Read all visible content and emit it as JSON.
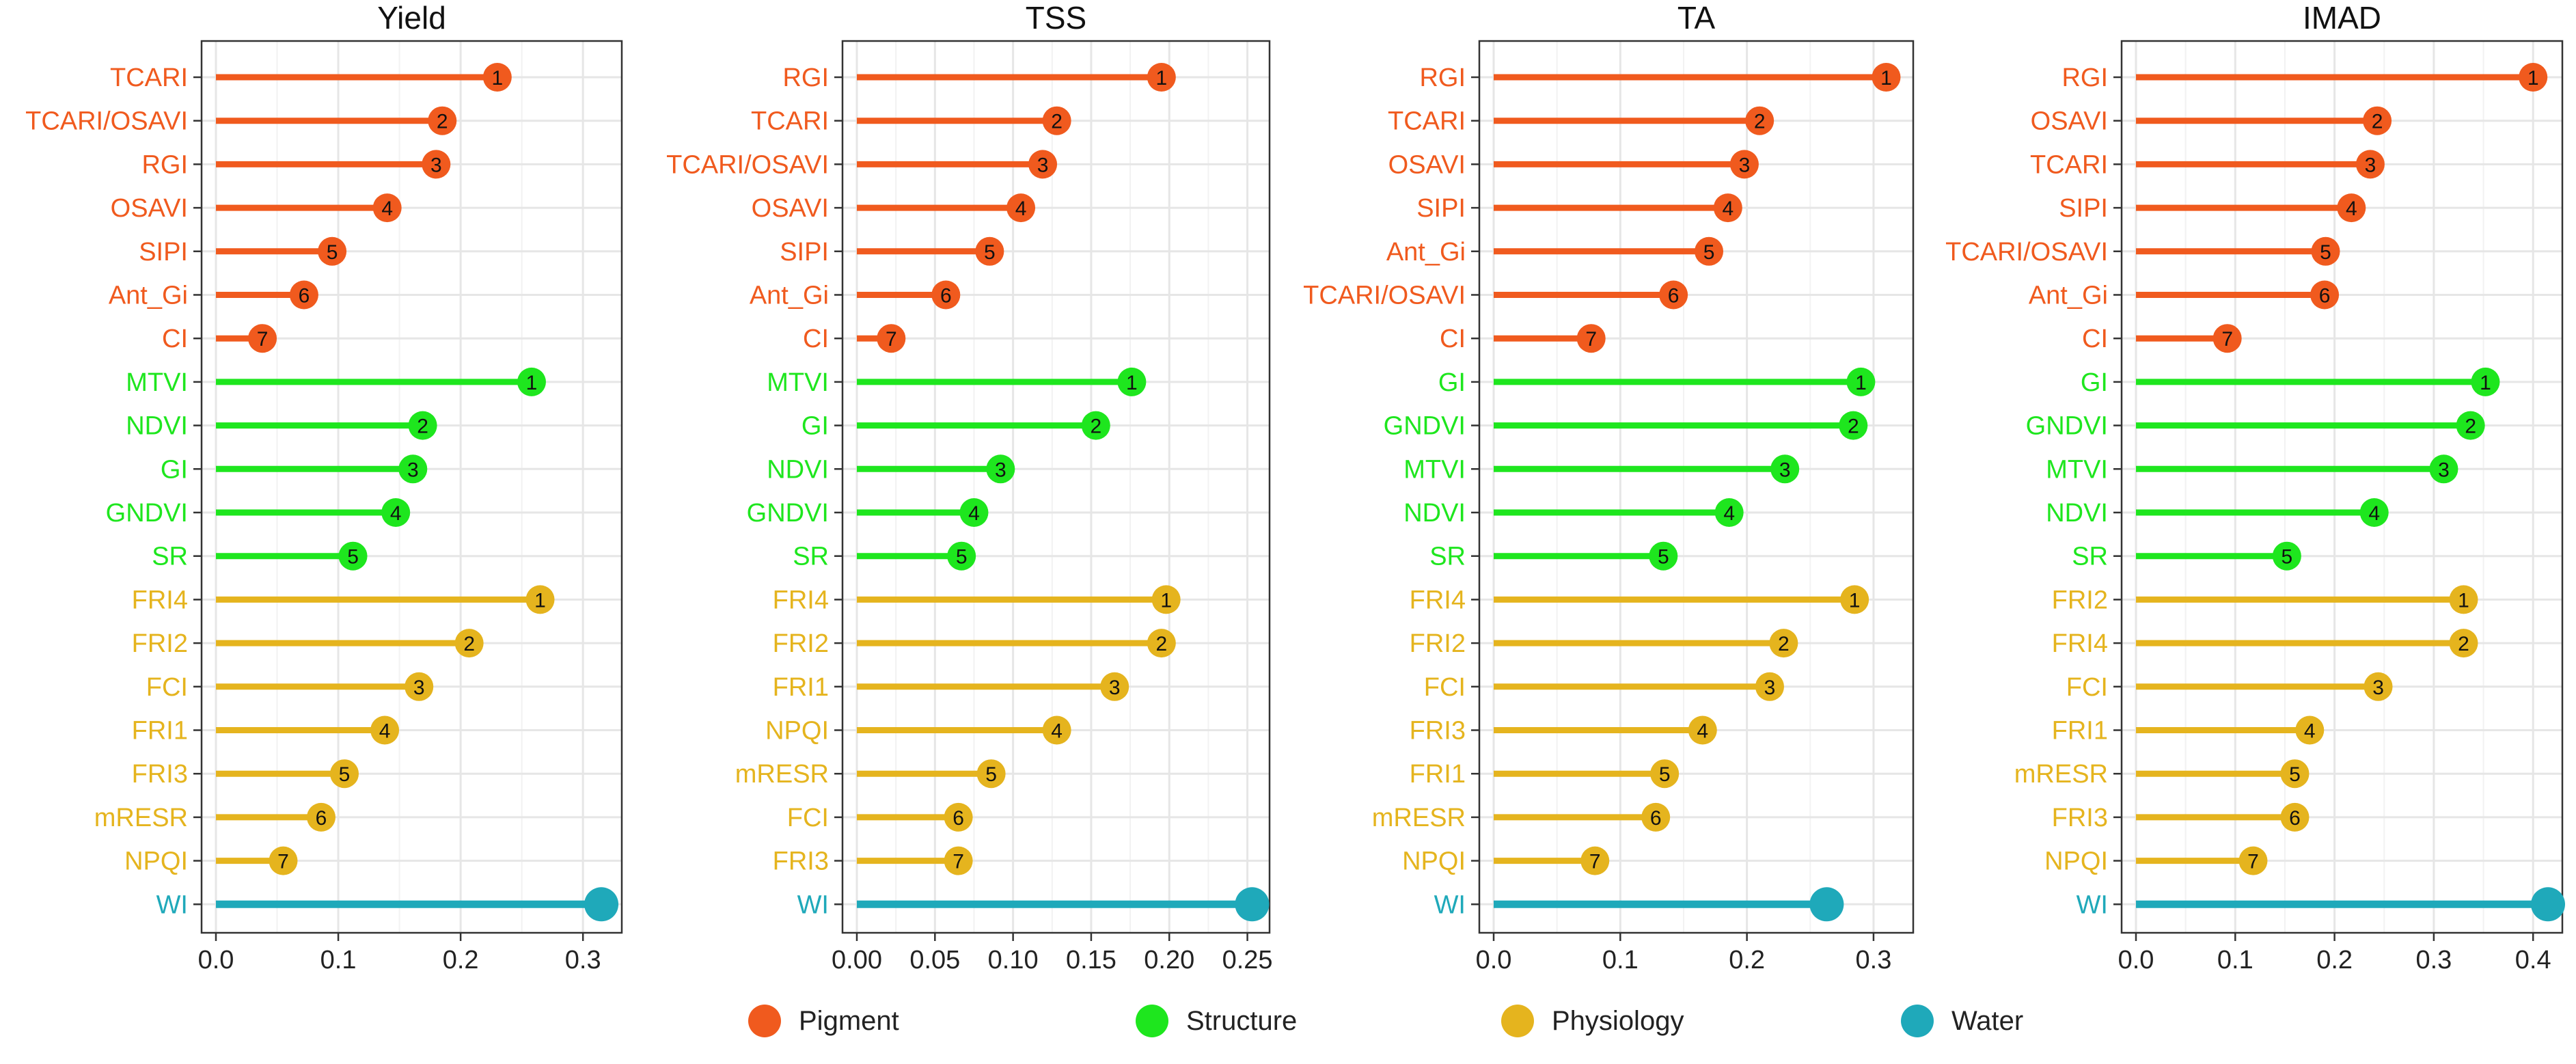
{
  "chart_data": [
    {
      "type": "lollipop",
      "title": "Yield",
      "xlim": [
        0,
        0.32
      ],
      "xticks": [
        0.0,
        0.1,
        0.2,
        0.3
      ],
      "xtick_labels": [
        "0.0",
        "0.1",
        "0.2",
        "0.3"
      ],
      "xlabel": "",
      "ylabel": "",
      "grid": true,
      "rows": [
        {
          "label": "TCARI",
          "group": "Pigment",
          "rank": "1",
          "value": 0.23
        },
        {
          "label": "TCARI/OSAVI",
          "group": "Pigment",
          "rank": "2",
          "value": 0.185
        },
        {
          "label": "RGI",
          "group": "Pigment",
          "rank": "3",
          "value": 0.18
        },
        {
          "label": "OSAVI",
          "group": "Pigment",
          "rank": "4",
          "value": 0.14
        },
        {
          "label": "SIPI",
          "group": "Pigment",
          "rank": "5",
          "value": 0.095
        },
        {
          "label": "Ant_Gi",
          "group": "Pigment",
          "rank": "6",
          "value": 0.072
        },
        {
          "label": "CI",
          "group": "Pigment",
          "rank": "7",
          "value": 0.038
        },
        {
          "label": "MTVI",
          "group": "Structure",
          "rank": "1",
          "value": 0.258
        },
        {
          "label": "NDVI",
          "group": "Structure",
          "rank": "2",
          "value": 0.169
        },
        {
          "label": "GI",
          "group": "Structure",
          "rank": "3",
          "value": 0.161
        },
        {
          "label": "GNDVI",
          "group": "Structure",
          "rank": "4",
          "value": 0.147
        },
        {
          "label": "SR",
          "group": "Structure",
          "rank": "5",
          "value": 0.112
        },
        {
          "label": "FRI4",
          "group": "Physiology",
          "rank": "1",
          "value": 0.265
        },
        {
          "label": "FRI2",
          "group": "Physiology",
          "rank": "2",
          "value": 0.207
        },
        {
          "label": "FCI",
          "group": "Physiology",
          "rank": "3",
          "value": 0.166
        },
        {
          "label": "FRI1",
          "group": "Physiology",
          "rank": "4",
          "value": 0.138
        },
        {
          "label": "FRI3",
          "group": "Physiology",
          "rank": "5",
          "value": 0.105
        },
        {
          "label": "mRESR",
          "group": "Physiology",
          "rank": "6",
          "value": 0.086
        },
        {
          "label": "NPQI",
          "group": "Physiology",
          "rank": "7",
          "value": 0.055
        },
        {
          "label": "WI",
          "group": "Water",
          "rank": "",
          "value": 0.315
        }
      ]
    },
    {
      "type": "lollipop",
      "title": "TSS",
      "xlim": [
        0,
        0.255
      ],
      "xticks": [
        0.0,
        0.05,
        0.1,
        0.15,
        0.2,
        0.25
      ],
      "xtick_labels": [
        "0.00",
        "0.05",
        "0.10",
        "0.15",
        "0.20",
        "0.25"
      ],
      "xlabel": "",
      "ylabel": "",
      "grid": true,
      "rows": [
        {
          "label": "RGI",
          "group": "Pigment",
          "rank": "1",
          "value": 0.195
        },
        {
          "label": "TCARI",
          "group": "Pigment",
          "rank": "2",
          "value": 0.128
        },
        {
          "label": "TCARI/OSAVI",
          "group": "Pigment",
          "rank": "3",
          "value": 0.119
        },
        {
          "label": "OSAVI",
          "group": "Pigment",
          "rank": "4",
          "value": 0.105
        },
        {
          "label": "SIPI",
          "group": "Pigment",
          "rank": "5",
          "value": 0.085
        },
        {
          "label": "Ant_Gi",
          "group": "Pigment",
          "rank": "6",
          "value": 0.057
        },
        {
          "label": "CI",
          "group": "Pigment",
          "rank": "7",
          "value": 0.022
        },
        {
          "label": "MTVI",
          "group": "Structure",
          "rank": "1",
          "value": 0.176
        },
        {
          "label": "GI",
          "group": "Structure",
          "rank": "2",
          "value": 0.153
        },
        {
          "label": "NDVI",
          "group": "Structure",
          "rank": "3",
          "value": 0.092
        },
        {
          "label": "GNDVI",
          "group": "Structure",
          "rank": "4",
          "value": 0.075
        },
        {
          "label": "SR",
          "group": "Structure",
          "rank": "5",
          "value": 0.067
        },
        {
          "label": "FRI4",
          "group": "Physiology",
          "rank": "1",
          "value": 0.198
        },
        {
          "label": "FRI2",
          "group": "Physiology",
          "rank": "2",
          "value": 0.195
        },
        {
          "label": "FRI1",
          "group": "Physiology",
          "rank": "3",
          "value": 0.165
        },
        {
          "label": "NPQI",
          "group": "Physiology",
          "rank": "4",
          "value": 0.128
        },
        {
          "label": "mRESR",
          "group": "Physiology",
          "rank": "5",
          "value": 0.086
        },
        {
          "label": "FCI",
          "group": "Physiology",
          "rank": "6",
          "value": 0.065
        },
        {
          "label": "FRI3",
          "group": "Physiology",
          "rank": "7",
          "value": 0.065
        },
        {
          "label": "WI",
          "group": "Water",
          "rank": "",
          "value": 0.253
        }
      ]
    },
    {
      "type": "lollipop",
      "title": "TA",
      "xlim": [
        0,
        0.32
      ],
      "xticks": [
        0.0,
        0.1,
        0.2,
        0.3
      ],
      "xtick_labels": [
        "0.0",
        "0.1",
        "0.2",
        "0.3"
      ],
      "xlabel": "",
      "ylabel": "",
      "grid": true,
      "rows": [
        {
          "label": "RGI",
          "group": "Pigment",
          "rank": "1",
          "value": 0.31
        },
        {
          "label": "TCARI",
          "group": "Pigment",
          "rank": "2",
          "value": 0.21
        },
        {
          "label": "OSAVI",
          "group": "Pigment",
          "rank": "3",
          "value": 0.198
        },
        {
          "label": "SIPI",
          "group": "Pigment",
          "rank": "4",
          "value": 0.185
        },
        {
          "label": "Ant_Gi",
          "group": "Pigment",
          "rank": "5",
          "value": 0.17
        },
        {
          "label": "TCARI/OSAVI",
          "group": "Pigment",
          "rank": "6",
          "value": 0.142
        },
        {
          "label": "CI",
          "group": "Pigment",
          "rank": "7",
          "value": 0.077
        },
        {
          "label": "GI",
          "group": "Structure",
          "rank": "1",
          "value": 0.29
        },
        {
          "label": "GNDVI",
          "group": "Structure",
          "rank": "2",
          "value": 0.284
        },
        {
          "label": "MTVI",
          "group": "Structure",
          "rank": "3",
          "value": 0.23
        },
        {
          "label": "NDVI",
          "group": "Structure",
          "rank": "4",
          "value": 0.186
        },
        {
          "label": "SR",
          "group": "Structure",
          "rank": "5",
          "value": 0.134
        },
        {
          "label": "FRI4",
          "group": "Physiology",
          "rank": "1",
          "value": 0.285
        },
        {
          "label": "FRI2",
          "group": "Physiology",
          "rank": "2",
          "value": 0.229
        },
        {
          "label": "FCI",
          "group": "Physiology",
          "rank": "3",
          "value": 0.218
        },
        {
          "label": "FRI3",
          "group": "Physiology",
          "rank": "4",
          "value": 0.165
        },
        {
          "label": "FRI1",
          "group": "Physiology",
          "rank": "5",
          "value": 0.135
        },
        {
          "label": "mRESR",
          "group": "Physiology",
          "rank": "6",
          "value": 0.128
        },
        {
          "label": "NPQI",
          "group": "Physiology",
          "rank": "7",
          "value": 0.08
        },
        {
          "label": "WI",
          "group": "Water",
          "rank": "",
          "value": 0.263
        }
      ]
    },
    {
      "type": "lollipop",
      "title": "IMAD",
      "xlim": [
        0,
        0.415
      ],
      "xticks": [
        0.0,
        0.1,
        0.2,
        0.3,
        0.4
      ],
      "xtick_labels": [
        "0.0",
        "0.1",
        "0.2",
        "0.3",
        "0.4"
      ],
      "xlabel": "",
      "ylabel": "",
      "grid": true,
      "rows": [
        {
          "label": "RGI",
          "group": "Pigment",
          "rank": "1",
          "value": 0.4
        },
        {
          "label": "OSAVI",
          "group": "Pigment",
          "rank": "2",
          "value": 0.243
        },
        {
          "label": "TCARI",
          "group": "Pigment",
          "rank": "3",
          "value": 0.236
        },
        {
          "label": "SIPI",
          "group": "Pigment",
          "rank": "4",
          "value": 0.217
        },
        {
          "label": "TCARI/OSAVI",
          "group": "Pigment",
          "rank": "5",
          "value": 0.191
        },
        {
          "label": "Ant_Gi",
          "group": "Pigment",
          "rank": "6",
          "value": 0.19
        },
        {
          "label": "CI",
          "group": "Pigment",
          "rank": "7",
          "value": 0.092
        },
        {
          "label": "GI",
          "group": "Structure",
          "rank": "1",
          "value": 0.352
        },
        {
          "label": "GNDVI",
          "group": "Structure",
          "rank": "2",
          "value": 0.337
        },
        {
          "label": "MTVI",
          "group": "Structure",
          "rank": "3",
          "value": 0.31
        },
        {
          "label": "NDVI",
          "group": "Structure",
          "rank": "4",
          "value": 0.24
        },
        {
          "label": "SR",
          "group": "Structure",
          "rank": "5",
          "value": 0.152
        },
        {
          "label": "FRI2",
          "group": "Physiology",
          "rank": "1",
          "value": 0.33
        },
        {
          "label": "FRI4",
          "group": "Physiology",
          "rank": "2",
          "value": 0.33
        },
        {
          "label": "FCI",
          "group": "Physiology",
          "rank": "3",
          "value": 0.244
        },
        {
          "label": "FRI1",
          "group": "Physiology",
          "rank": "4",
          "value": 0.175
        },
        {
          "label": "mRESR",
          "group": "Physiology",
          "rank": "5",
          "value": 0.16
        },
        {
          "label": "FRI3",
          "group": "Physiology",
          "rank": "6",
          "value": 0.16
        },
        {
          "label": "NPQI",
          "group": "Physiology",
          "rank": "7",
          "value": 0.118
        },
        {
          "label": "WI",
          "group": "Water",
          "rank": "",
          "value": 0.415
        }
      ]
    }
  ],
  "legend": [
    {
      "label": "Pigment",
      "color": "#F05A1E"
    },
    {
      "label": "Structure",
      "color": "#1EE61E"
    },
    {
      "label": "Physiology",
      "color": "#E5B41E"
    },
    {
      "label": "Water",
      "color": "#1FA9BA"
    }
  ],
  "colors": {
    "Pigment": "#F05A1E",
    "Structure": "#1EE61E",
    "Physiology": "#E5B41E",
    "Water": "#1FA9BA",
    "grid": "#E6E6E6",
    "axis": "#333333",
    "text": "#222222"
  }
}
